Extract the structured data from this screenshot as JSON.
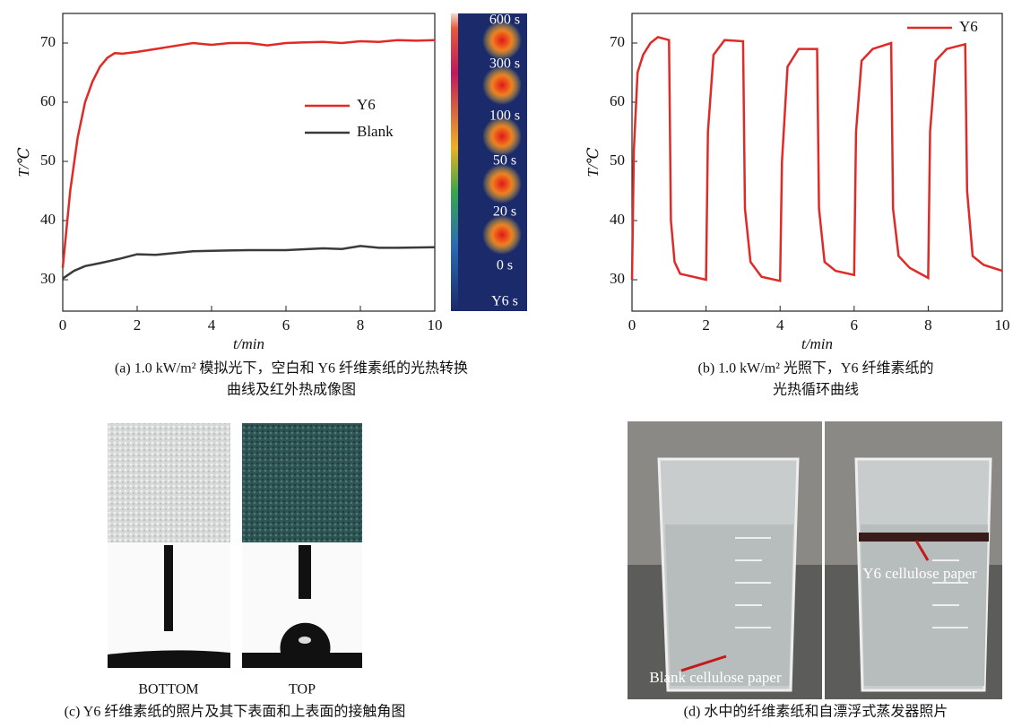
{
  "chart_data": [
    {
      "type": "line",
      "xlabel": "t/min",
      "ylabel": "T/℃",
      "xlim": [
        0,
        10
      ],
      "ylim": [
        24.7,
        75
      ],
      "xticks": [
        0,
        2,
        4,
        6,
        8,
        10
      ],
      "yticks": [
        30,
        40,
        50,
        60,
        70
      ],
      "legend": "upper-right",
      "series": [
        {
          "name": "Y6",
          "color": "#e02a26",
          "x": [
            0,
            0.2,
            0.4,
            0.6,
            0.8,
            1,
            1.2,
            1.4,
            1.6,
            2,
            2.5,
            3,
            3.5,
            4,
            4.5,
            5,
            5.5,
            6,
            6.5,
            7,
            7.5,
            8,
            8.5,
            9,
            9.5,
            10
          ],
          "values": [
            32,
            45,
            54,
            60,
            63.5,
            66,
            67.5,
            68.3,
            68.2,
            68.5,
            69,
            69.5,
            70,
            69.7,
            70,
            70,
            69.6,
            70,
            70.1,
            70.2,
            70,
            70.3,
            70.2,
            70.5,
            70.4,
            70.5
          ]
        },
        {
          "name": "Blank",
          "color": "#3a3a3a",
          "x": [
            0,
            0.3,
            0.6,
            1,
            1.5,
            2,
            2.5,
            3,
            3.5,
            4,
            5,
            6,
            7,
            7.5,
            8,
            8.5,
            9,
            10
          ],
          "values": [
            30.2,
            31.5,
            32.3,
            32.8,
            33.5,
            34.3,
            34.2,
            34.5,
            34.8,
            34.9,
            35,
            35,
            35.3,
            35.2,
            35.7,
            35.4,
            35.4,
            35.5
          ]
        }
      ]
    },
    {
      "type": "line",
      "xlabel": "t/min",
      "ylabel": "T/℃",
      "xlim": [
        0,
        10
      ],
      "ylim": [
        24.7,
        75
      ],
      "xticks": [
        0,
        2,
        4,
        6,
        8,
        10
      ],
      "yticks": [
        30,
        40,
        50,
        60,
        70
      ],
      "legend": "upper-right",
      "series": [
        {
          "name": "Y6",
          "color": "#e02a26",
          "x": [
            0,
            0.05,
            0.15,
            0.3,
            0.5,
            0.7,
            1,
            1.05,
            1.15,
            1.3,
            2,
            2.05,
            2.2,
            2.5,
            3,
            3.05,
            3.2,
            3.5,
            4,
            4.05,
            4.2,
            4.5,
            5,
            5.05,
            5.2,
            5.5,
            6,
            6.05,
            6.2,
            6.5,
            7,
            7.05,
            7.2,
            7.5,
            8,
            8.05,
            8.2,
            8.5,
            9,
            9.05,
            9.2,
            9.5,
            10
          ],
          "values": [
            30,
            52,
            65,
            68,
            70,
            71,
            70.5,
            40,
            33,
            31,
            30,
            55,
            68,
            70.5,
            70.3,
            42,
            33,
            30.5,
            29.8,
            50,
            66,
            69,
            69,
            42,
            33,
            31.5,
            30.8,
            55,
            67,
            69,
            70,
            42,
            34,
            32,
            30.3,
            55,
            67,
            69,
            69.8,
            45,
            34,
            32.5,
            31.5
          ]
        }
      ]
    }
  ],
  "thermal_labels": [
    "600 s",
    "300 s",
    "100 s",
    "50 s",
    "20 s",
    "0 s",
    "Y6 s"
  ],
  "captions": {
    "a": [
      "(a) 1.0 kW/m² 模拟光下，空白和 Y6 纤维素纸的光热转换",
      "曲线及红外热成像图"
    ],
    "b": [
      "(b) 1.0 kW/m² 光照下，Y6 纤维素纸的",
      "光热循环曲线"
    ],
    "c": [
      "(c) Y6 纤维素纸的照片及其下表面和上表面的接触角图"
    ],
    "d": [
      "(d) 水中的纤维素纸和自漂浮式蒸发器照片"
    ]
  },
  "photo_c": {
    "labels": [
      "BOTTOM",
      "TOP"
    ]
  },
  "photo_d": {
    "labels": [
      "Y6 cellulose paper",
      "Blank cellulose paper"
    ]
  }
}
